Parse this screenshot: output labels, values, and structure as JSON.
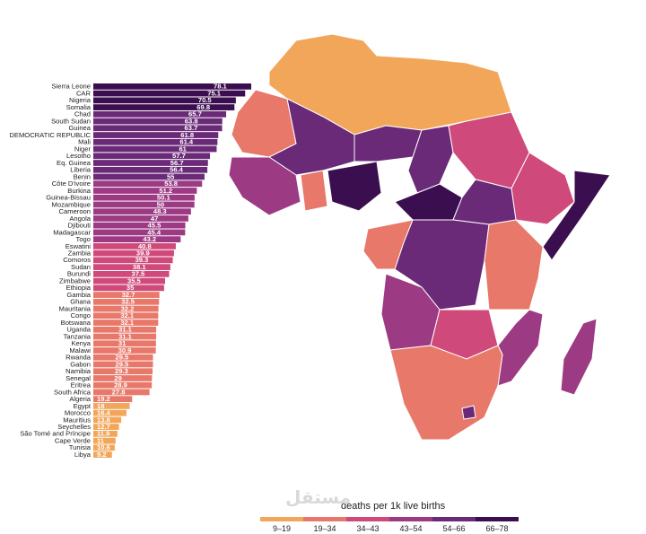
{
  "chart_data": {
    "type": "bar",
    "orientation": "horizontal",
    "categories": [
      "Sierra Leone",
      "CAR",
      "Nigeria",
      "Somalia",
      "Chad",
      "South Sudan",
      "Guinea",
      "DEMOCRATIC REPUBLIC",
      "Mali",
      "Niger",
      "Lesotho",
      "Eq. Guinea",
      "Liberia",
      "Benin",
      "Côte D'ivoire",
      "Burkina",
      "Guinea-Bissau",
      "Mozambique",
      "Cameroon",
      "Angola",
      "Djibouti",
      "Madagascar",
      "Togo",
      "Eswatini",
      "Zambia",
      "Comoros",
      "Sudan",
      "Burundi",
      "Zimbabwe",
      "Ethiopia",
      "Gambia",
      "Ghana",
      "Mauritania",
      "Congo",
      "Botswana",
      "Uganda",
      "Tanzania",
      "Kenya",
      "Malawi",
      "Rwanda",
      "Gabon",
      "Namibia",
      "Senegal",
      "Eritrea",
      "South Africa",
      "Algeria",
      "Egypt",
      "Morocco",
      "Mauritius",
      "Seychelles",
      "São Tomé and Príncipe",
      "Cape Verde",
      "Tunisia",
      "Libya"
    ],
    "values": [
      78.1,
      75.1,
      70.5,
      69.8,
      65.7,
      63.8,
      63.7,
      61.8,
      61.4,
      61,
      57.7,
      56.7,
      56.4,
      55,
      53.8,
      51.2,
      50.1,
      50,
      48.3,
      47,
      45.5,
      45.4,
      43.2,
      40.8,
      39.9,
      39.3,
      38.1,
      37.5,
      35.5,
      35,
      32.7,
      32.5,
      32.2,
      32.1,
      32.1,
      31.1,
      31.1,
      31,
      30.9,
      29.5,
      29.5,
      29.3,
      29,
      28.9,
      27.8,
      19.2,
      18,
      16.4,
      13.8,
      12.7,
      11.9,
      11,
      10.6,
      9.2
    ],
    "value_labels": [
      "78.1",
      "75.1",
      "70.5",
      "69.8",
      "65.7",
      "63.8",
      "63.7",
      "61.8",
      "61.4",
      "61",
      "57.7",
      "56.7",
      "56.4",
      "55",
      "53.8",
      "51.2",
      "50.1",
      "50",
      "48.3",
      "47",
      "45.5",
      "45.4",
      "43.2",
      "40.8",
      "39.9",
      "39.3",
      "38.1",
      "37.5",
      "35.5",
      "35",
      "32.7",
      "32.5",
      "32.2",
      "32.1",
      "32.1",
      "31.1",
      "31.1",
      "31",
      "30.9",
      "29.5",
      "29.5",
      "29.3",
      "29",
      "28.9",
      "27.8",
      "19.2",
      "18",
      "16.4",
      "13.8",
      "12.7",
      "11.9",
      "11",
      "10.6",
      "9.2"
    ],
    "color_bins": [
      {
        "label": "9–19",
        "min": 9,
        "max": 19,
        "color": "#f2a65a"
      },
      {
        "label": "19–34",
        "min": 19,
        "max": 34,
        "color": "#e8786a"
      },
      {
        "label": "34–43",
        "min": 34,
        "max": 43,
        "color": "#cf4a7a"
      },
      {
        "label": "43–54",
        "min": 43,
        "max": 54,
        "color": "#9c3a84"
      },
      {
        "label": "54–66",
        "min": 54,
        "max": 66,
        "color": "#6a2a78"
      },
      {
        "label": "66–78",
        "min": 66,
        "max": 78.1,
        "color": "#3b0f4f"
      }
    ]
  },
  "legend": {
    "title": "deaths per 1k live births",
    "items": [
      {
        "label": "9–19",
        "color": "#f2a65a"
      },
      {
        "label": "19–34",
        "color": "#e8786a"
      },
      {
        "label": "34–43",
        "color": "#cf4a7a"
      },
      {
        "label": "43–54",
        "color": "#9c3a84"
      },
      {
        "label": "54–66",
        "color": "#6a2a78"
      },
      {
        "label": "66–78",
        "color": "#3b0f4f"
      }
    ]
  },
  "watermark": "مستقل"
}
